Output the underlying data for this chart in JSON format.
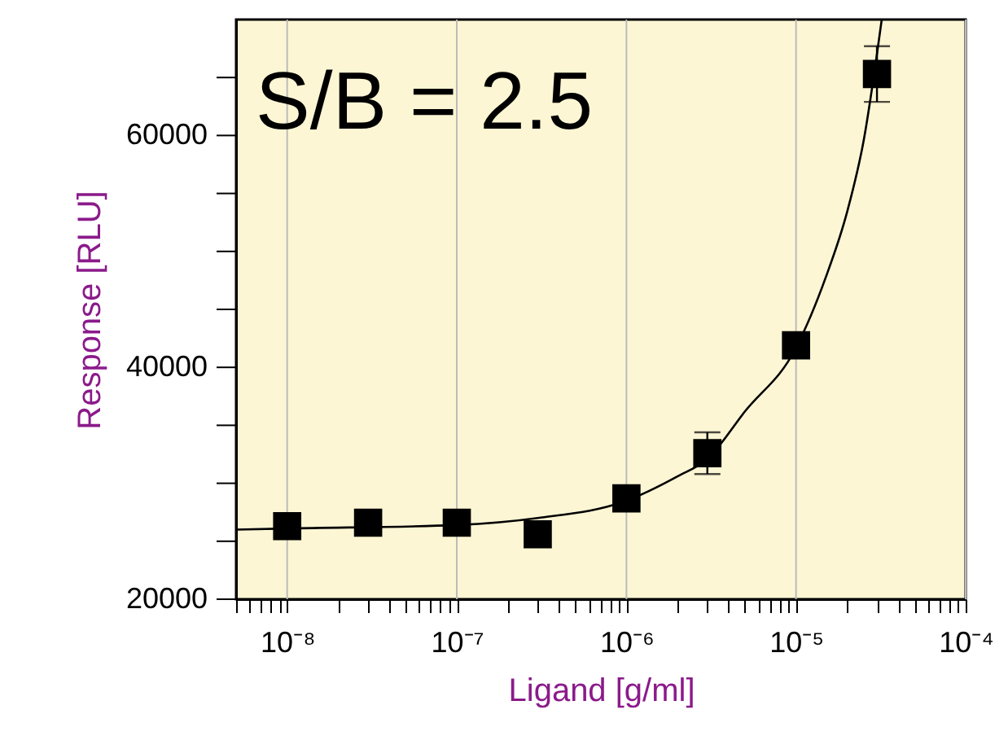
{
  "chart_data": {
    "type": "scatter",
    "xlabel": "Ligand [g/ml]",
    "ylabel": "Response [RLU]",
    "annotations": [
      "S/B = 2.5"
    ],
    "log": "x",
    "grid": "x",
    "marker": "square",
    "xlim": [
      5e-09,
      0.0001
    ],
    "ylim": [
      20000,
      70000
    ],
    "xticks": [
      {
        "value": 5e-09,
        "label": null
      },
      {
        "value": 6e-09,
        "label": null
      },
      {
        "value": 7e-09,
        "label": null
      },
      {
        "value": 8e-09,
        "label": null
      },
      {
        "value": 9e-09,
        "label": null
      },
      {
        "value": 1e-08,
        "label": "10⁻⁸"
      },
      {
        "value": 2e-08,
        "label": null
      },
      {
        "value": 3e-08,
        "label": null
      },
      {
        "value": 4e-08,
        "label": null
      },
      {
        "value": 5e-08,
        "label": null
      },
      {
        "value": 6e-08,
        "label": null
      },
      {
        "value": 7e-08,
        "label": null
      },
      {
        "value": 8e-08,
        "label": null
      },
      {
        "value": 9e-08,
        "label": null
      },
      {
        "value": 1e-07,
        "label": "10⁻⁷"
      },
      {
        "value": 2e-07,
        "label": null
      },
      {
        "value": 3e-07,
        "label": null
      },
      {
        "value": 4e-07,
        "label": null
      },
      {
        "value": 5e-07,
        "label": null
      },
      {
        "value": 6e-07,
        "label": null
      },
      {
        "value": 7e-07,
        "label": null
      },
      {
        "value": 8e-07,
        "label": null
      },
      {
        "value": 9e-07,
        "label": null
      },
      {
        "value": 1e-06,
        "label": "10⁻⁶"
      },
      {
        "value": 2e-06,
        "label": null
      },
      {
        "value": 3e-06,
        "label": null
      },
      {
        "value": 4e-06,
        "label": null
      },
      {
        "value": 5e-06,
        "label": null
      },
      {
        "value": 6e-06,
        "label": null
      },
      {
        "value": 7e-06,
        "label": null
      },
      {
        "value": 8e-06,
        "label": null
      },
      {
        "value": 9e-06,
        "label": null
      },
      {
        "value": 1e-05,
        "label": "10⁻⁵"
      },
      {
        "value": 2e-05,
        "label": null
      },
      {
        "value": 3e-05,
        "label": null
      },
      {
        "value": 4e-05,
        "label": null
      },
      {
        "value": 5e-05,
        "label": null
      },
      {
        "value": 6e-05,
        "label": null
      },
      {
        "value": 7e-05,
        "label": null
      },
      {
        "value": 8e-05,
        "label": null
      },
      {
        "value": 9e-05,
        "label": null
      },
      {
        "value": 0.0001,
        "label": "10⁻⁴"
      }
    ],
    "yticks": [
      20000,
      {
        "value": 25000,
        "label": null
      },
      {
        "value": 30000,
        "label": null
      },
      {
        "value": 35000,
        "label": null
      },
      40000,
      {
        "value": 45000,
        "label": null
      },
      {
        "value": 50000,
        "label": null
      },
      {
        "value": 55000,
        "label": null
      },
      60000,
      {
        "value": 65000,
        "label": null
      }
    ],
    "series": [
      {
        "color": "#000000",
        "x": [
          1e-08,
          3e-08,
          1e-07,
          3e-07,
          1e-06,
          3e-06,
          1e-05,
          3e-05
        ],
        "values": [
          26300,
          26600,
          26600,
          25600,
          28700,
          32600,
          41900,
          65300
        ],
        "errors": [
          null,
          null,
          null,
          null,
          null,
          1800,
          null,
          2400
        ]
      },
      {
        "type": "line",
        "marker": "none",
        "color": "#000000",
        "x": [
          5e-09,
          1e-08,
          1e-07,
          3e-07,
          1e-06,
          2e-06,
          3e-06,
          5e-06,
          1e-05,
          1.5e-05,
          2e-05,
          2.5e-05,
          3.2e-05
        ],
        "values": [
          26000,
          26100,
          26400,
          27000,
          28500,
          30600,
          32100,
          36200,
          41700,
          47800,
          53400,
          59500,
          70000
        ]
      }
    ]
  }
}
